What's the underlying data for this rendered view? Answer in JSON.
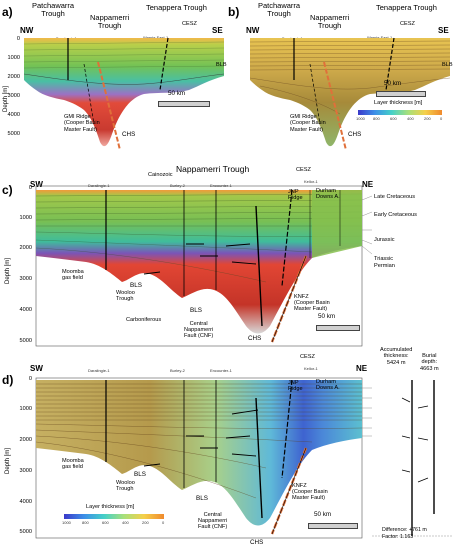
{
  "panels": {
    "a": {
      "letter": "a)",
      "nw": "NW",
      "se": "SE",
      "patch": "Patchawarra\nTrough",
      "napp": "Nappamerri\nTrough",
      "tena": "Tenappera Trough",
      "cesz": "CESZ",
      "well1": "Bearbush-1",
      "well2": "Warnie East-1",
      "blb": "BLB",
      "scale": "50 km",
      "gmi": "GMI Ridge\n(Cooper Basin\nMaster Fault)",
      "chs": "CHS"
    },
    "b": {
      "letter": "b)",
      "nw": "NW",
      "se": "SE",
      "patch": "Patchawarra\nTrough",
      "napp": "Nappamerri\nTrough",
      "tena": "Tenappera Trough",
      "cesz": "CESZ",
      "well1": "Bearbush-1",
      "well2": "Warnie East-1",
      "blb": "BLB",
      "scale": "50 km",
      "cbar_title": "Layer thickness [m]",
      "cbar_ticks": [
        "1000",
        "800",
        "600",
        "400",
        "200",
        "0"
      ],
      "gmi": "GMI Ridge\n(Cooper Basin\nMaster Fault)",
      "chs": "CHS"
    },
    "c": {
      "letter": "c)",
      "title": "Nappamerri Trough",
      "sw": "SW",
      "ne": "NE",
      "cesz": "CESZ",
      "wells": [
        "Daralingie-1",
        "Burley-2",
        "Encounter-1",
        "Kellor-1"
      ],
      "cainozoic": "Cainozoic",
      "jnp": "JNP\nRidge",
      "durham": "Durham\nDowns A.",
      "legend": [
        "Late Cretaceous",
        "Early Cretaceous",
        "Jurassic",
        "Triassic",
        "Permian"
      ],
      "moomba": "Moomba\ngas field",
      "bls1": "BLS",
      "wooloo": "Wooloo\nTrough",
      "bls2": "BLS",
      "carboniferous": "Carboniferous",
      "cnf": "Central\nNappamerri\nFault (CNF)",
      "chs": "CHS",
      "knfz": "KNFZ\n(Cooper Basin\nMaster Fault)",
      "scale": "50 km"
    },
    "d": {
      "letter": "d)",
      "sw": "SW",
      "ne": "NE",
      "cesz": "CESZ",
      "wells": [
        "Daralingie-1",
        "Burley-2",
        "Encounter-1",
        "Kellor-1"
      ],
      "jnp": "JNP\nRidge",
      "durham": "Durham\nDowns A.",
      "moomba": "Moomba\ngas field",
      "bls1": "BLS",
      "wooloo": "Wooloo\nTrough",
      "bls2": "BLS",
      "cnf": "Central\nNappamerri\nFault (CNF)",
      "chs": "CHS",
      "knfz": "KNFZ\n(Cooper Basin\nMaster Fault)",
      "scale": "50 km",
      "cbar_title": "Layer thickness [m]",
      "cbar_ticks": [
        "1000",
        "800",
        "600",
        "400",
        "200",
        "0"
      ],
      "acc": "Accumulated\nthickness:\n5424 m",
      "burial": "Burial\ndepth:\n4663 m",
      "diff": "Difference: +761 m\nFactor: 1.163"
    }
  },
  "axis": {
    "depth_title": "Depth [m]",
    "ticks_ab": [
      "0",
      "1000",
      "2000",
      "3000",
      "4000",
      "5000"
    ],
    "ticks_cd": [
      "0",
      "1000",
      "2000",
      "3000",
      "4000",
      "5000"
    ]
  }
}
